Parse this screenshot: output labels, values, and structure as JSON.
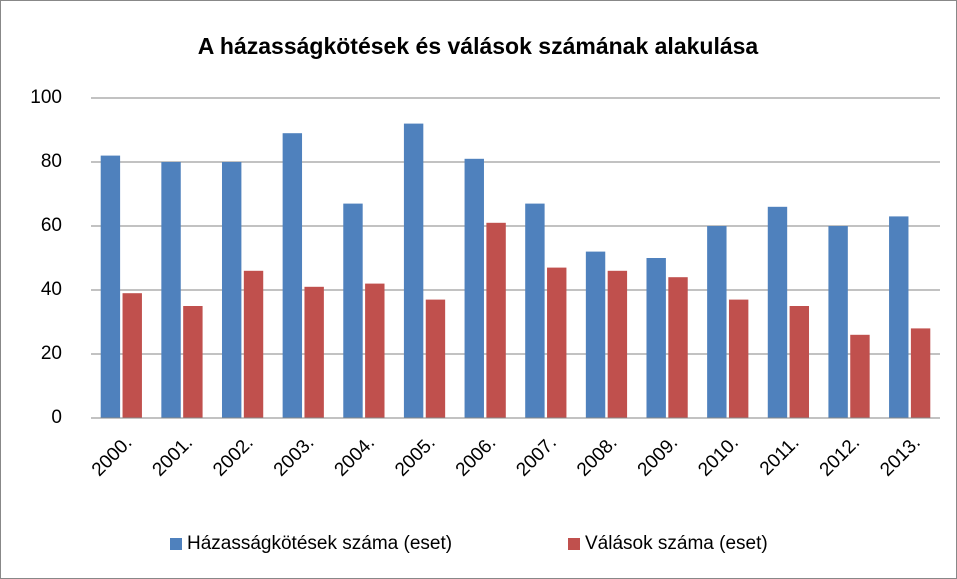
{
  "chart_data": {
    "type": "bar",
    "title": "A házasságkötések és válások számának alakulása",
    "categories": [
      "2000.",
      "2001.",
      "2002.",
      "2003.",
      "2004.",
      "2005.",
      "2006.",
      "2007.",
      "2008.",
      "2009.",
      "2010.",
      "2011.",
      "2012.",
      "2013."
    ],
    "series": [
      {
        "name": "Házasságkötések száma (eset)",
        "color": "#4f81bd",
        "values": [
          82,
          80,
          80,
          89,
          67,
          92,
          81,
          67,
          52,
          50,
          60,
          66,
          60,
          63
        ]
      },
      {
        "name": "Válások száma (eset)",
        "color": "#c0504d",
        "values": [
          39,
          35,
          46,
          41,
          42,
          37,
          61,
          47,
          46,
          44,
          37,
          35,
          26,
          28
        ]
      }
    ],
    "ylim": [
      0,
      100
    ],
    "yticks": [
      0,
      20,
      40,
      60,
      80,
      100
    ],
    "grid": true,
    "legend": "bottom"
  }
}
